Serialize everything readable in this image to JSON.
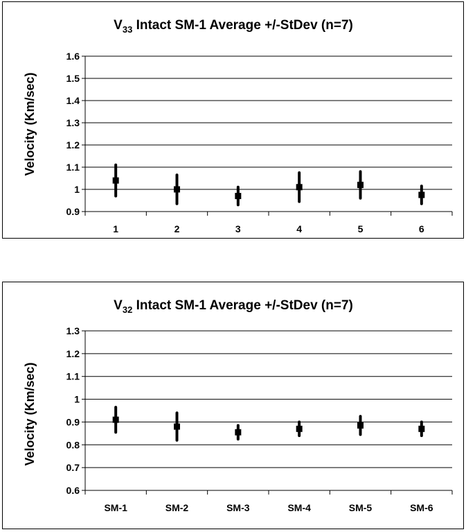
{
  "chart_data": [
    {
      "type": "errorbar",
      "title": {
        "prefix": "V",
        "subscript": "33",
        "rest": " Intact SM-1 Average +/-StDev (n=7)"
      },
      "xlabel": "",
      "ylabel": "Velocity (Km/sec)",
      "categories": [
        "1",
        "2",
        "3",
        "4",
        "5",
        "6"
      ],
      "ylim": [
        0.9,
        1.6
      ],
      "yticks": [
        "0.9",
        "1",
        "1.1",
        "1.2",
        "1.3",
        "1.4",
        "1.5",
        "1.6"
      ],
      "series": [
        {
          "mean": [
            1.04,
            1.0,
            0.97,
            1.01,
            1.02,
            0.975
          ],
          "stdev": [
            0.07,
            0.065,
            0.04,
            0.065,
            0.06,
            0.04
          ]
        }
      ],
      "grid": true,
      "color": "#000000"
    },
    {
      "type": "errorbar",
      "title": {
        "prefix": "V",
        "subscript": "32",
        "rest": " Intact SM-1 Average +/-StDev (n=7)"
      },
      "xlabel": "",
      "ylabel": "Velocity (Km/sec)",
      "categories": [
        "SM-1",
        "SM-2",
        "SM-3",
        "SM-4",
        "SM-5",
        "SM-6"
      ],
      "ylim": [
        0.6,
        1.3
      ],
      "yticks": [
        "0.6",
        "0.7",
        "0.8",
        "0.9",
        "1",
        "1.1",
        "1.2",
        "1.3"
      ],
      "series": [
        {
          "mean": [
            0.91,
            0.88,
            0.855,
            0.87,
            0.885,
            0.87
          ],
          "stdev": [
            0.055,
            0.06,
            0.03,
            0.03,
            0.04,
            0.03
          ]
        }
      ],
      "grid": true,
      "color": "#000000"
    }
  ]
}
